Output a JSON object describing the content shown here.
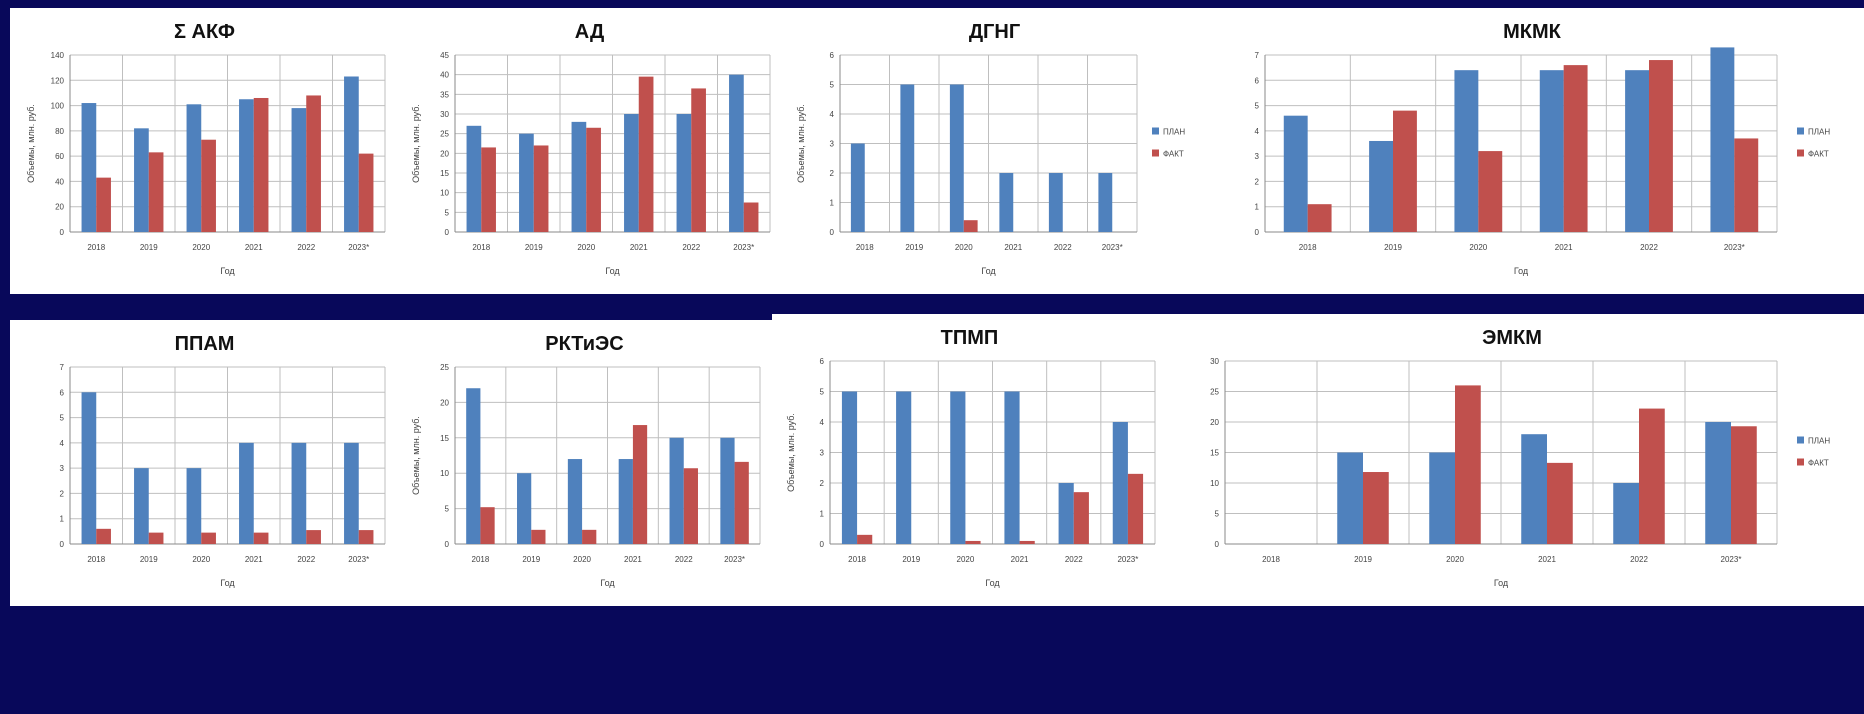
{
  "colors": {
    "background": "#08085a",
    "plan": "#4f81bd",
    "fact": "#c0504d",
    "grid": "#bfbfbf"
  },
  "chart_data": [
    {
      "type": "bar",
      "title": "Σ АКФ",
      "categories": [
        "2018",
        "2019",
        "2020",
        "2021",
        "2022",
        "2023*"
      ],
      "ylim": [
        0,
        140
      ],
      "yticks": [
        0,
        20,
        40,
        60,
        80,
        100,
        120,
        140
      ],
      "ylabel": "Объемы, млн. руб.",
      "xlabel": "Год",
      "series": [
        {
          "key": "plan",
          "values": [
            102,
            82,
            101,
            105,
            98,
            123
          ]
        },
        {
          "key": "fact",
          "values": [
            43,
            63,
            73,
            106,
            108,
            62
          ]
        }
      ]
    },
    {
      "type": "bar",
      "title": "АД",
      "categories": [
        "2018",
        "2019",
        "2020",
        "2021",
        "2022",
        "2023*"
      ],
      "ylim": [
        0,
        45
      ],
      "yticks": [
        0,
        5,
        10,
        15,
        20,
        25,
        30,
        35,
        40,
        45
      ],
      "ylabel": "Объемы, млн. руб.",
      "xlabel": "Год",
      "series": [
        {
          "key": "plan",
          "values": [
            27,
            25,
            28,
            30,
            30,
            40
          ]
        },
        {
          "key": "fact",
          "values": [
            21.5,
            22,
            26.5,
            39.5,
            36.5,
            7.5
          ]
        }
      ]
    },
    {
      "type": "bar",
      "title": "ДГНГ",
      "categories": [
        "2018",
        "2019",
        "2020",
        "2021",
        "2022",
        "2023*"
      ],
      "ylim": [
        0,
        6
      ],
      "yticks": [
        0,
        1,
        2,
        3,
        4,
        5,
        6
      ],
      "ylabel": "Объемы, млн. руб.",
      "xlabel": "Год",
      "legend": [
        "ПЛАН",
        "ФАКТ"
      ],
      "series": [
        {
          "key": "plan",
          "values": [
            3,
            5,
            5,
            2,
            2,
            2
          ]
        },
        {
          "key": "fact",
          "values": [
            0,
            0,
            0.4,
            0,
            0,
            0
          ]
        }
      ]
    },
    {
      "type": "bar",
      "title": "МКМК",
      "categories": [
        "2018",
        "2019",
        "2020",
        "2021",
        "2022",
        "2023*"
      ],
      "ylim": [
        0,
        7
      ],
      "yticks": [
        0,
        1,
        2,
        3,
        4,
        5,
        6,
        7
      ],
      "ylabel": "",
      "xlabel": "Год",
      "legend": [
        "ПЛАН",
        "ФАКТ"
      ],
      "series": [
        {
          "key": "plan",
          "values": [
            4.6,
            3.6,
            6.4,
            6.4,
            6.4,
            7.3
          ]
        },
        {
          "key": "fact",
          "values": [
            1.1,
            4.8,
            3.2,
            6.6,
            6.8,
            3.7
          ]
        }
      ]
    },
    {
      "type": "bar",
      "title": "ППАМ",
      "categories": [
        "2018",
        "2019",
        "2020",
        "2021",
        "2022",
        "2023*"
      ],
      "ylim": [
        0,
        7
      ],
      "yticks": [
        0,
        1,
        2,
        3,
        4,
        5,
        6,
        7
      ],
      "ylabel": "",
      "xlabel": "Год",
      "series": [
        {
          "key": "plan",
          "values": [
            6,
            3,
            3,
            4,
            4,
            4
          ]
        },
        {
          "key": "fact",
          "values": [
            0.6,
            0.45,
            0.45,
            0.45,
            0.55,
            0.55
          ]
        }
      ]
    },
    {
      "type": "bar",
      "title": "РКТиЭС",
      "categories": [
        "2018",
        "2019",
        "2020",
        "2021",
        "2022",
        "2023*"
      ],
      "ylim": [
        0,
        25
      ],
      "yticks": [
        0,
        5,
        10,
        15,
        20,
        25
      ],
      "ylabel": "Объемы, млн. руб.",
      "xlabel": "Год",
      "series": [
        {
          "key": "plan",
          "values": [
            22,
            10,
            12,
            12,
            15,
            15
          ]
        },
        {
          "key": "fact",
          "values": [
            5.2,
            2,
            2,
            16.8,
            10.7,
            11.6
          ]
        }
      ]
    },
    {
      "type": "bar",
      "title": "ТПМП",
      "categories": [
        "2018",
        "2019",
        "2020",
        "2021",
        "2022",
        "2023*"
      ],
      "ylim": [
        0,
        6
      ],
      "yticks": [
        0,
        1,
        2,
        3,
        4,
        5,
        6
      ],
      "ylabel": "Объемы, млн. руб.",
      "xlabel": "Год",
      "series": [
        {
          "key": "plan",
          "values": [
            5,
            5,
            5,
            5,
            2,
            4
          ]
        },
        {
          "key": "fact",
          "values": [
            0.3,
            0,
            0.1,
            0.1,
            1.7,
            2.3
          ]
        }
      ]
    },
    {
      "type": "bar",
      "title": "ЭМКМ",
      "categories": [
        "2018",
        "2019",
        "2020",
        "2021",
        "2022",
        "2023*"
      ],
      "ylim": [
        0,
        30
      ],
      "yticks": [
        0,
        5,
        10,
        15,
        20,
        25,
        30
      ],
      "ylabel": "",
      "xlabel": "Год",
      "legend": [
        "ПЛАН",
        "ФАКТ"
      ],
      "series": [
        {
          "key": "plan",
          "values": [
            0,
            15,
            15,
            18,
            10,
            20
          ]
        },
        {
          "key": "fact",
          "values": [
            0,
            11.8,
            26,
            13.3,
            22.2,
            19.3
          ]
        }
      ]
    }
  ]
}
